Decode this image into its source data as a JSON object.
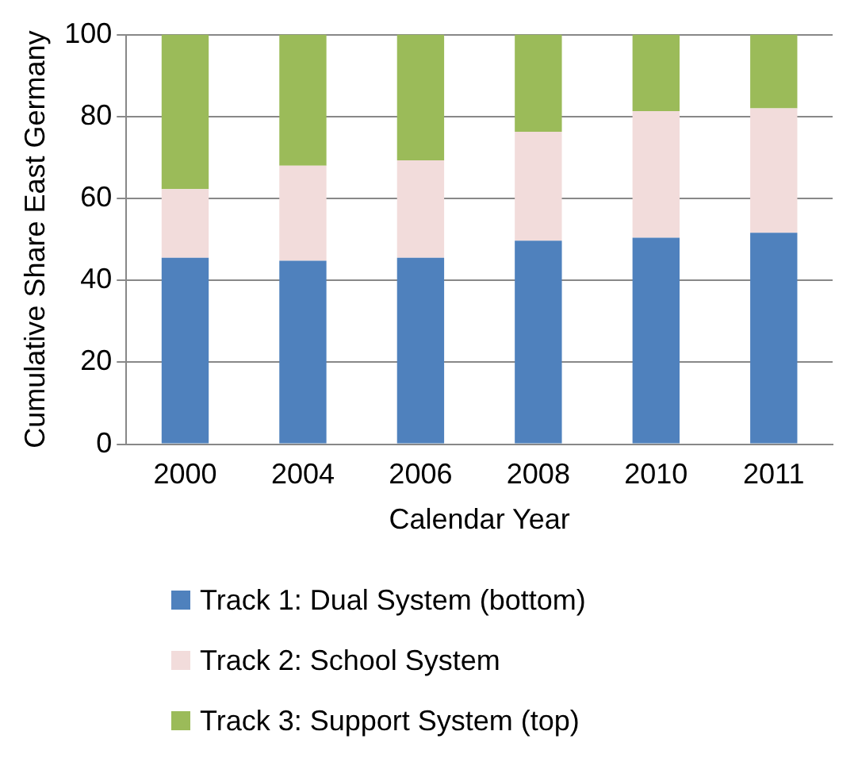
{
  "chart_data": {
    "type": "bar",
    "stacked": true,
    "xlabel": "Calendar Year",
    "ylabel": "Cumulative Share East Germany",
    "categories": [
      "2000",
      "2004",
      "2006",
      "2008",
      "2010",
      "2011"
    ],
    "series": [
      {
        "name": "Track 1: Dual System (bottom)",
        "color": "#4f81bd",
        "values": [
          45.5,
          44.8,
          45.5,
          49.7,
          50.4,
          51.6
        ]
      },
      {
        "name": "Track 2: School System",
        "color": "#f2dcdb",
        "values": [
          16.8,
          23.2,
          23.8,
          26.6,
          30.9,
          30.4
        ]
      },
      {
        "name": "Track 3: Support System (top)",
        "color": "#9bbb59",
        "values": [
          37.7,
          32.0,
          30.7,
          23.7,
          18.7,
          18.0
        ]
      }
    ],
    "ylim": [
      0,
      100
    ],
    "yticks": [
      0,
      20,
      40,
      60,
      80,
      100
    ],
    "grid": "y",
    "legend": "bottom"
  }
}
